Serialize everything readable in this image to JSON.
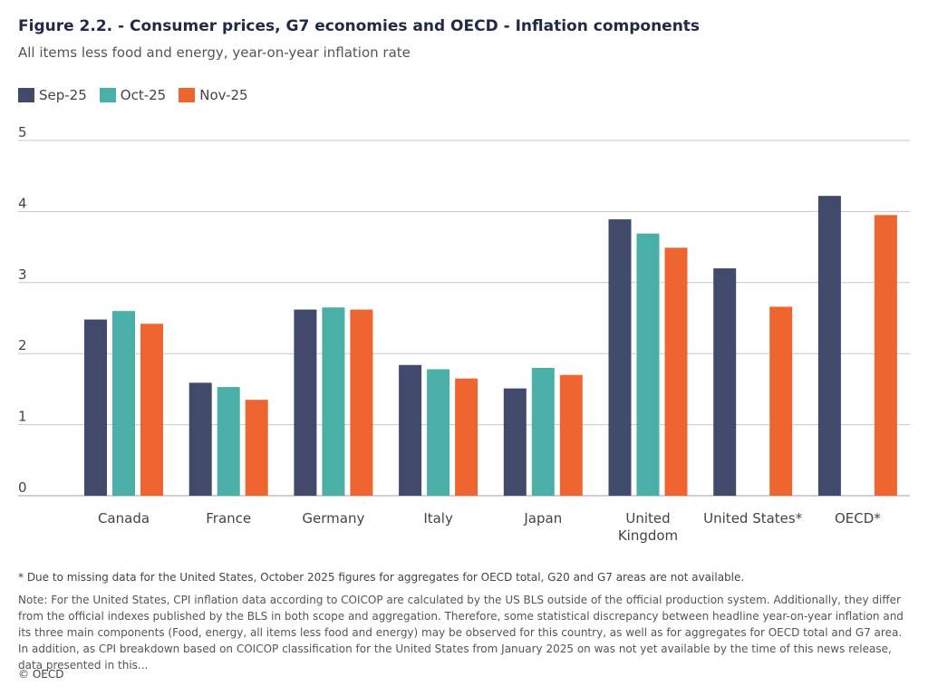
{
  "chart_data": {
    "type": "bar",
    "title": "Figure 2.2. - Consumer prices, G7 economies and OECD - Inflation components",
    "subtitle": "All items less food and energy, year-on-year inflation rate",
    "xlabel": "",
    "ylabel": "",
    "ylim": [
      0,
      5
    ],
    "yticks": [
      "0",
      "1",
      "2",
      "3",
      "4",
      "5"
    ],
    "grid": true,
    "legend_position": "top-left",
    "categories": [
      "Canada",
      "France",
      "Germany",
      "Italy",
      "Japan",
      "United Kingdom",
      "United States*",
      "OECD*"
    ],
    "category_lines": [
      [
        "Canada"
      ],
      [
        "France"
      ],
      [
        "Germany"
      ],
      [
        "Italy"
      ],
      [
        "Japan"
      ],
      [
        "United",
        "Kingdom"
      ],
      [
        "United States*"
      ],
      [
        "OECD*"
      ]
    ],
    "series": [
      {
        "name": "Sep-25",
        "color": "#414a6b",
        "values": [
          2.48,
          1.59,
          2.62,
          1.84,
          1.51,
          3.89,
          3.2,
          4.22
        ]
      },
      {
        "name": "Oct-25",
        "color": "#4aafa7",
        "values": [
          2.6,
          1.53,
          2.65,
          1.78,
          1.8,
          3.69,
          null,
          null
        ]
      },
      {
        "name": "Nov-25",
        "color": "#ef6530",
        "values": [
          2.42,
          1.35,
          2.62,
          1.65,
          1.7,
          3.49,
          2.66,
          3.95
        ]
      }
    ]
  },
  "footnote": "* Due to missing data for the United States, October 2025 figures for aggregates for OECD total, G20 and G7 areas are not available.",
  "note": "Note: For the United States, CPI inflation data according to COICOP are calculated by the US BLS outside of the official production system. Additionally, they differ from the official indexes published by the BLS in both scope and aggregation. Therefore, some statistical discrepancy between headline year-on-year inflation and its three main components (Food, energy, all items less food and energy) may be observed for this country, as well as for aggregates for OECD total and G7 area. In addition, as CPI breakdown based on COICOP classification for the United States from January 2025 on was not yet available by the time of this news release, data presented in this...",
  "copyright": "© OECD"
}
